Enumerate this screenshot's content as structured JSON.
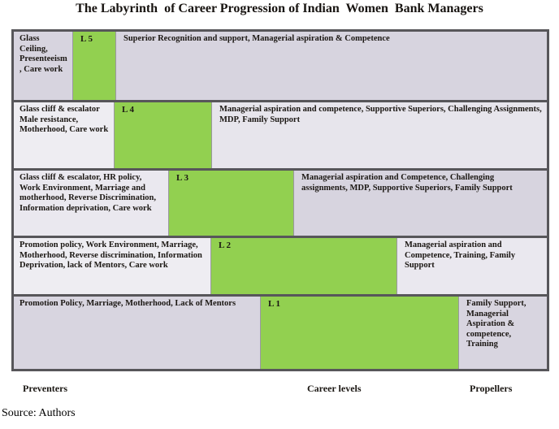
{
  "title": "The Labyrinth  of Career Progression of Indian  Women  Bank Managers",
  "rows": [
    {
      "level": "L 5",
      "preventers": "Glass Ceiling, Presenteeism, Care work",
      "propellers": "Superior Recognition and support,  Managerial aspiration & Competence"
    },
    {
      "level": "L 4",
      "preventers": "Glass cliff & escalator Male resistance, Motherhood, Care work",
      "propellers": "Managerial aspiration and competence, Supportive Superiors, Challenging Assignments, MDP, Family Support"
    },
    {
      "level": "L 3",
      "preventers": "Glass cliff & escalator, HR policy, Work Environment, Marriage and motherhood, Reverse Discrimination, Information deprivation, Care work",
      "propellers": "Managerial aspiration and Competence, Challenging assignments, MDP, Supportive Superiors, Family Support"
    },
    {
      "level": "L 2",
      "preventers": "Promotion policy, Work Environment, Marriage, Motherhood, Reverse discrimination, Information Deprivation, lack of Mentors, Care work",
      "propellers": "Managerial aspiration and Competence, Training, Family Support"
    },
    {
      "level": "L 1",
      "preventers": "Promotion Policy, Marriage, Motherhood, Lack of Mentors",
      "propellers": "Family Support, Managerial Aspiration & competence, Training"
    }
  ],
  "axis_labels": {
    "left": "Preventers",
    "center": "Career levels",
    "right": "Propellers"
  },
  "source_note": "Source: Authors",
  "colors": {
    "level_green": "#92d050",
    "row_lavender": "#d7d4df",
    "row_light": "#eeedf2",
    "table_border": "#57565a"
  }
}
